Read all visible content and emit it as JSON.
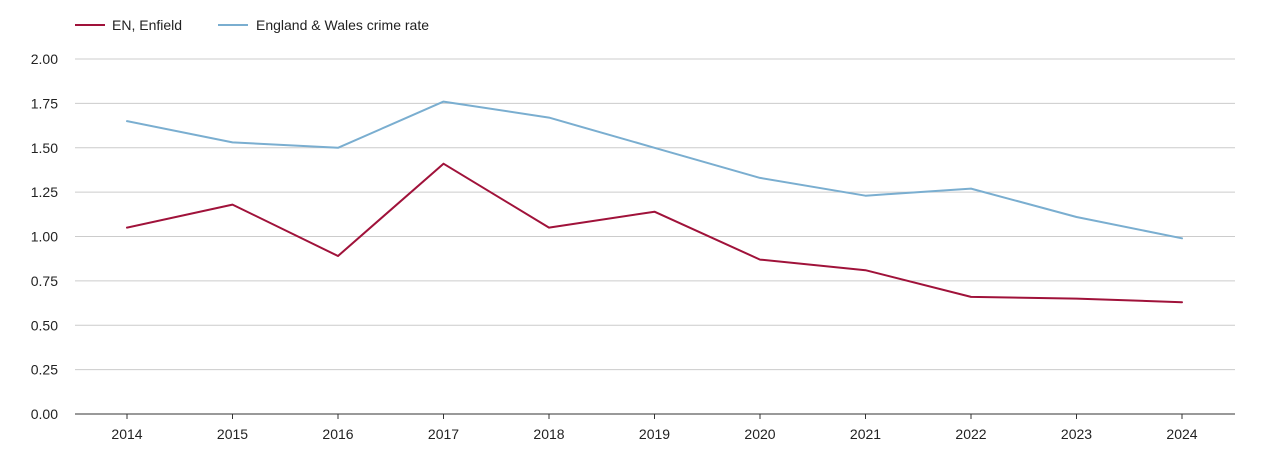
{
  "chart_data": {
    "type": "line",
    "title": "",
    "xlabel": "",
    "ylabel": "",
    "categories": [
      "2014",
      "2015",
      "2016",
      "2017",
      "2018",
      "2019",
      "2020",
      "2021",
      "2022",
      "2023",
      "2024"
    ],
    "ylim": [
      0,
      2
    ],
    "yticks": [
      "0.00",
      "0.25",
      "0.50",
      "0.75",
      "1.00",
      "1.25",
      "1.50",
      "1.75",
      "2.00"
    ],
    "grid": true,
    "legend_position": "top-left",
    "series": [
      {
        "name": "EN, Enfield",
        "color": "#a0123a",
        "values": [
          1.05,
          1.18,
          0.89,
          1.41,
          1.05,
          1.14,
          0.87,
          0.81,
          0.66,
          0.65,
          0.63
        ]
      },
      {
        "name": "England & Wales crime rate",
        "color": "#7aaed0",
        "values": [
          1.65,
          1.53,
          1.5,
          1.76,
          1.67,
          1.5,
          1.33,
          1.23,
          1.27,
          1.11,
          0.99
        ]
      }
    ]
  }
}
